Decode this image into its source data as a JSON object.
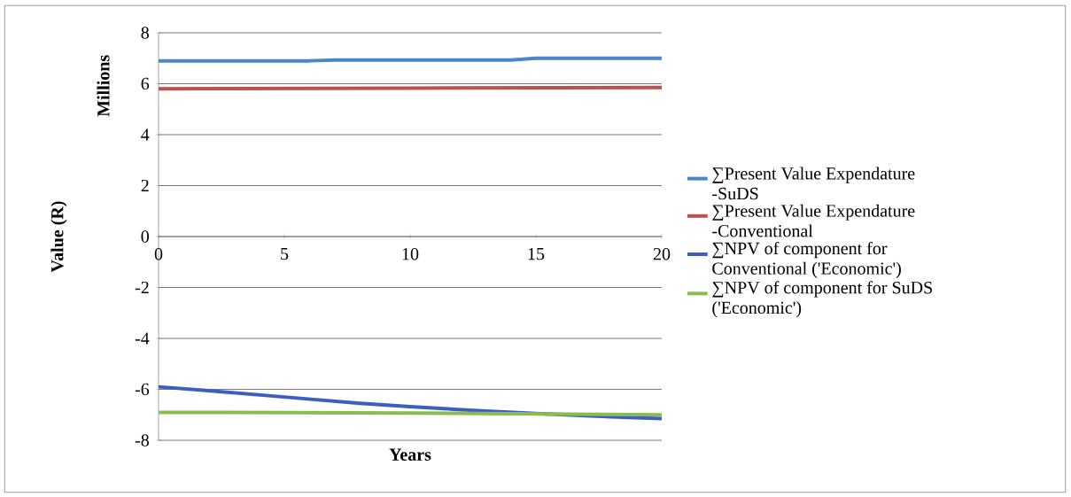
{
  "chart_data": {
    "type": "line",
    "xlabel": "Years",
    "ylabel": "Value (R)",
    "annotations": [
      "Millions"
    ],
    "xlim": [
      0,
      20
    ],
    "xticks": [
      0,
      5,
      10,
      15,
      20
    ],
    "ylim": [
      -8,
      8
    ],
    "yticks": [
      -8,
      -6,
      -4,
      -2,
      0,
      2,
      4,
      6,
      8
    ],
    "grid": "y",
    "legend": "right",
    "marker": "none",
    "line_style": "solid",
    "series": [
      {
        "name": "∑Present Value Expendature -SuDS",
        "color": "#4a86c8",
        "x": [
          0,
          6,
          7,
          14,
          15,
          20
        ],
        "values": [
          6.9,
          6.9,
          6.93,
          6.93,
          7.0,
          7.0
        ]
      },
      {
        "name": "∑Present Value Expendature -Conventional",
        "color": "#c0504d",
        "x": [
          0,
          10,
          20
        ],
        "values": [
          5.8,
          5.83,
          5.85
        ]
      },
      {
        "name": "∑NPV of component for Conventional ('Economic')",
        "color": "#3b5fc0",
        "x": [
          0,
          2,
          5,
          8,
          10,
          13,
          15,
          18,
          20
        ],
        "values": [
          -5.9,
          -6.05,
          -6.3,
          -6.55,
          -6.68,
          -6.85,
          -6.95,
          -7.08,
          -7.15
        ]
      },
      {
        "name": "∑NPV of component for SuDS ('Economic')",
        "color": "#8cbb4f",
        "x": [
          0,
          10,
          20
        ],
        "values": [
          -6.9,
          -6.93,
          -7.0
        ]
      }
    ]
  }
}
